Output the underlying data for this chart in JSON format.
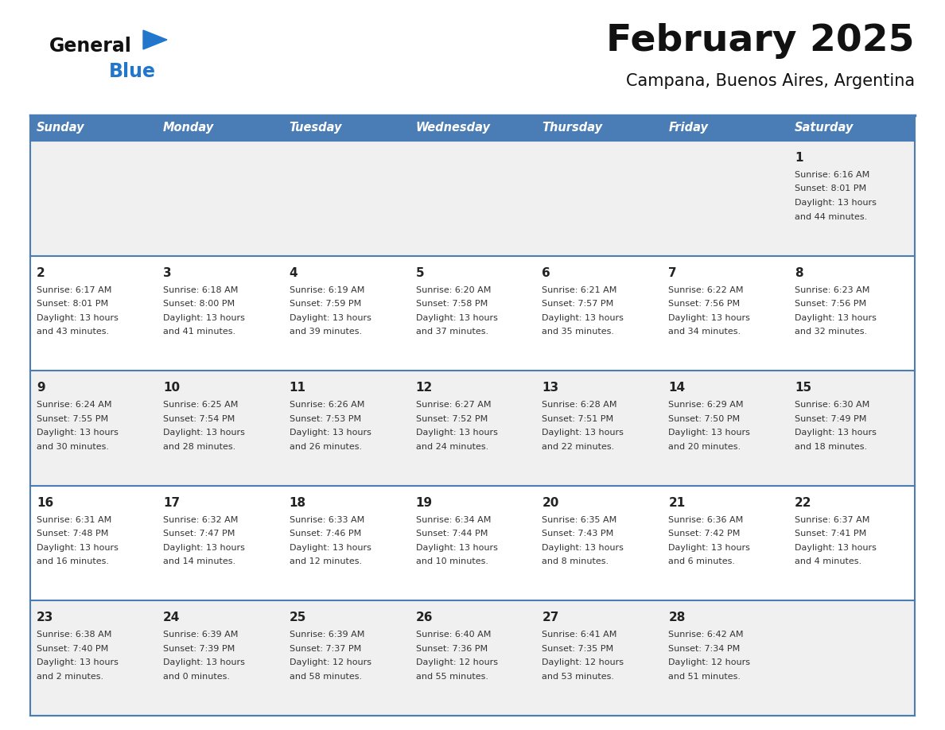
{
  "title": "February 2025",
  "subtitle": "Campana, Buenos Aires, Argentina",
  "days_of_week": [
    "Sunday",
    "Monday",
    "Tuesday",
    "Wednesday",
    "Thursday",
    "Friday",
    "Saturday"
  ],
  "header_bg": "#4a7db5",
  "header_text": "#ffffff",
  "row_bg_odd": "#f0f0f0",
  "row_bg_even": "#ffffff",
  "border_color": "#4a7db5",
  "day_num_color": "#222222",
  "info_text_color": "#333333",
  "logo_general_color": "#111111",
  "logo_blue_color": "#2277cc",
  "logo_triangle_color": "#2277cc",
  "calendar_data": [
    [
      null,
      null,
      null,
      null,
      null,
      null,
      {
        "day": 1,
        "sunrise": "6:16 AM",
        "sunset": "8:01 PM",
        "daylight_h": "13 hours",
        "daylight_m": "and 44 minutes."
      }
    ],
    [
      {
        "day": 2,
        "sunrise": "6:17 AM",
        "sunset": "8:01 PM",
        "daylight_h": "13 hours",
        "daylight_m": "and 43 minutes."
      },
      {
        "day": 3,
        "sunrise": "6:18 AM",
        "sunset": "8:00 PM",
        "daylight_h": "13 hours",
        "daylight_m": "and 41 minutes."
      },
      {
        "day": 4,
        "sunrise": "6:19 AM",
        "sunset": "7:59 PM",
        "daylight_h": "13 hours",
        "daylight_m": "and 39 minutes."
      },
      {
        "day": 5,
        "sunrise": "6:20 AM",
        "sunset": "7:58 PM",
        "daylight_h": "13 hours",
        "daylight_m": "and 37 minutes."
      },
      {
        "day": 6,
        "sunrise": "6:21 AM",
        "sunset": "7:57 PM",
        "daylight_h": "13 hours",
        "daylight_m": "and 35 minutes."
      },
      {
        "day": 7,
        "sunrise": "6:22 AM",
        "sunset": "7:56 PM",
        "daylight_h": "13 hours",
        "daylight_m": "and 34 minutes."
      },
      {
        "day": 8,
        "sunrise": "6:23 AM",
        "sunset": "7:56 PM",
        "daylight_h": "13 hours",
        "daylight_m": "and 32 minutes."
      }
    ],
    [
      {
        "day": 9,
        "sunrise": "6:24 AM",
        "sunset": "7:55 PM",
        "daylight_h": "13 hours",
        "daylight_m": "and 30 minutes."
      },
      {
        "day": 10,
        "sunrise": "6:25 AM",
        "sunset": "7:54 PM",
        "daylight_h": "13 hours",
        "daylight_m": "and 28 minutes."
      },
      {
        "day": 11,
        "sunrise": "6:26 AM",
        "sunset": "7:53 PM",
        "daylight_h": "13 hours",
        "daylight_m": "and 26 minutes."
      },
      {
        "day": 12,
        "sunrise": "6:27 AM",
        "sunset": "7:52 PM",
        "daylight_h": "13 hours",
        "daylight_m": "and 24 minutes."
      },
      {
        "day": 13,
        "sunrise": "6:28 AM",
        "sunset": "7:51 PM",
        "daylight_h": "13 hours",
        "daylight_m": "and 22 minutes."
      },
      {
        "day": 14,
        "sunrise": "6:29 AM",
        "sunset": "7:50 PM",
        "daylight_h": "13 hours",
        "daylight_m": "and 20 minutes."
      },
      {
        "day": 15,
        "sunrise": "6:30 AM",
        "sunset": "7:49 PM",
        "daylight_h": "13 hours",
        "daylight_m": "and 18 minutes."
      }
    ],
    [
      {
        "day": 16,
        "sunrise": "6:31 AM",
        "sunset": "7:48 PM",
        "daylight_h": "13 hours",
        "daylight_m": "and 16 minutes."
      },
      {
        "day": 17,
        "sunrise": "6:32 AM",
        "sunset": "7:47 PM",
        "daylight_h": "13 hours",
        "daylight_m": "and 14 minutes."
      },
      {
        "day": 18,
        "sunrise": "6:33 AM",
        "sunset": "7:46 PM",
        "daylight_h": "13 hours",
        "daylight_m": "and 12 minutes."
      },
      {
        "day": 19,
        "sunrise": "6:34 AM",
        "sunset": "7:44 PM",
        "daylight_h": "13 hours",
        "daylight_m": "and 10 minutes."
      },
      {
        "day": 20,
        "sunrise": "6:35 AM",
        "sunset": "7:43 PM",
        "daylight_h": "13 hours",
        "daylight_m": "and 8 minutes."
      },
      {
        "day": 21,
        "sunrise": "6:36 AM",
        "sunset": "7:42 PM",
        "daylight_h": "13 hours",
        "daylight_m": "and 6 minutes."
      },
      {
        "day": 22,
        "sunrise": "6:37 AM",
        "sunset": "7:41 PM",
        "daylight_h": "13 hours",
        "daylight_m": "and 4 minutes."
      }
    ],
    [
      {
        "day": 23,
        "sunrise": "6:38 AM",
        "sunset": "7:40 PM",
        "daylight_h": "13 hours",
        "daylight_m": "and 2 minutes."
      },
      {
        "day": 24,
        "sunrise": "6:39 AM",
        "sunset": "7:39 PM",
        "daylight_h": "13 hours",
        "daylight_m": "and 0 minutes."
      },
      {
        "day": 25,
        "sunrise": "6:39 AM",
        "sunset": "7:37 PM",
        "daylight_h": "12 hours",
        "daylight_m": "and 58 minutes."
      },
      {
        "day": 26,
        "sunrise": "6:40 AM",
        "sunset": "7:36 PM",
        "daylight_h": "12 hours",
        "daylight_m": "and 55 minutes."
      },
      {
        "day": 27,
        "sunrise": "6:41 AM",
        "sunset": "7:35 PM",
        "daylight_h": "12 hours",
        "daylight_m": "and 53 minutes."
      },
      {
        "day": 28,
        "sunrise": "6:42 AM",
        "sunset": "7:34 PM",
        "daylight_h": "12 hours",
        "daylight_m": "and 51 minutes."
      },
      null
    ]
  ],
  "fig_width": 11.88,
  "fig_height": 9.18,
  "dpi": 100
}
